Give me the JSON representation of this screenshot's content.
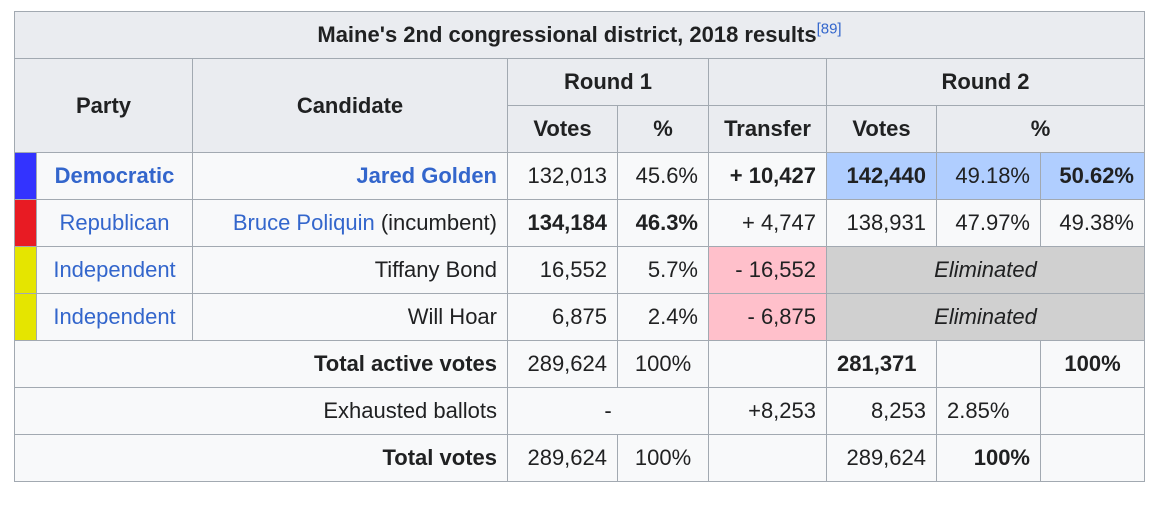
{
  "title": "Maine's 2nd congressional district, 2018 results",
  "ref": "[89]",
  "headers": {
    "party": "Party",
    "candidate": "Candidate",
    "round1": "Round 1",
    "transfer": "Transfer",
    "round2": "Round 2",
    "votes": "Votes",
    "pct": "%"
  },
  "colors": {
    "democratic": "#3333ff",
    "republican": "#e81b23",
    "independent": "#e5e500",
    "winner_highlight": "#b0ceff",
    "negative_transfer": "#ffc0cb",
    "eliminated": "#d0d0d0"
  },
  "rows": [
    {
      "party": "Democratic",
      "candidate": "Jared Golden",
      "candidate_suffix": "",
      "r1_votes": "132,013",
      "r1_pct": "45.6%",
      "transfer": "+ 10,427",
      "r2_votes": "142,440",
      "r2_pct": "49.18%",
      "r2_pct2": "50.62%"
    },
    {
      "party": "Republican",
      "candidate": "Bruce Poliquin",
      "candidate_suffix": " (incumbent)",
      "r1_votes": "134,184",
      "r1_pct": "46.3%",
      "transfer": "+ 4,747",
      "r2_votes": "138,931",
      "r2_pct": "47.97%",
      "r2_pct2": "49.38%"
    },
    {
      "party": "Independent",
      "candidate": "Tiffany Bond",
      "r1_votes": "16,552",
      "r1_pct": "5.7%",
      "transfer": "- 16,552",
      "eliminated": "Eliminated"
    },
    {
      "party": "Independent",
      "candidate": "Will Hoar",
      "r1_votes": "6,875",
      "r1_pct": "2.4%",
      "transfer": "- 6,875",
      "eliminated": "Eliminated"
    }
  ],
  "totals": {
    "active": {
      "label": "Total active votes",
      "r1_votes": "289,624",
      "r1_pct": "100%",
      "r2_votes": "281,371",
      "r2_pct2": "100%"
    },
    "exhausted": {
      "label": "Exhausted ballots",
      "r1": "-",
      "transfer": "+8,253",
      "r2_votes": "8,253",
      "r2_pct": "2.85%"
    },
    "total": {
      "label": "Total votes",
      "r1_votes": "289,624",
      "r1_pct": "100%",
      "r2_votes": "289,624",
      "r2_pct": "100%"
    }
  }
}
